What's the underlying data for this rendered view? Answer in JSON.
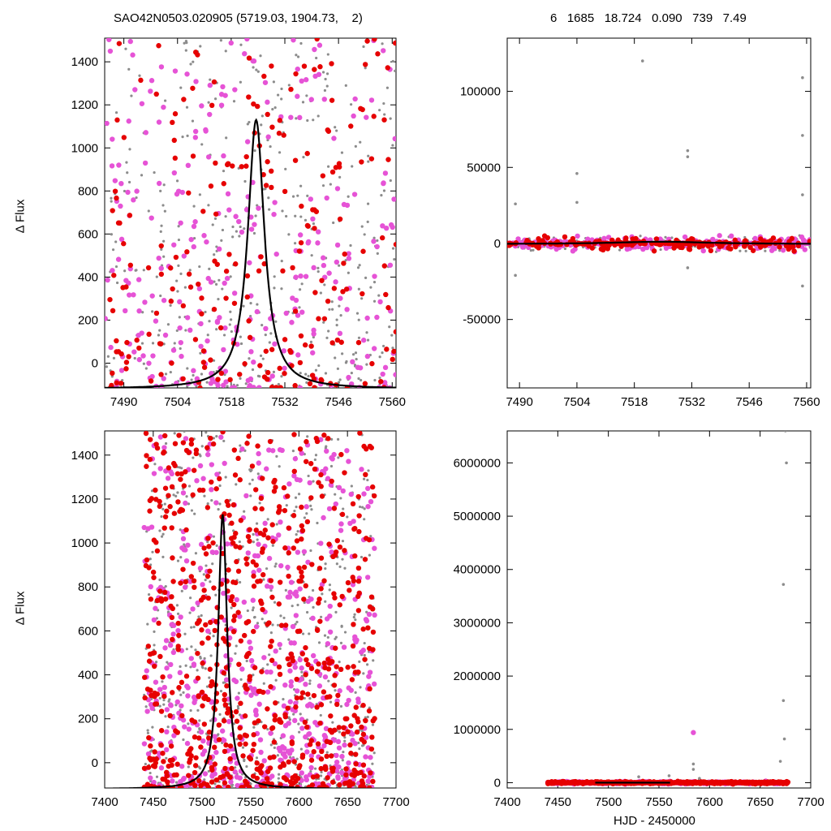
{
  "header": {
    "left": "SAO42N0503.020905 (5719.03, 1904.73,    2)",
    "right": "6   1685   18.724   0.090   739   7.49"
  },
  "labels": {
    "ylabel": "Δ Flux",
    "xlabel": "HJD - 2450000"
  },
  "colors": {
    "gray": "#8c8c8c",
    "magenta": "#e653d6",
    "red": "#e60000",
    "model": "#000000"
  },
  "chart_data": [
    {
      "id": "top-left",
      "type": "scatter",
      "xlim": [
        7485,
        7561
      ],
      "ylim": [
        -115,
        1510
      ],
      "xticks": [
        7490,
        7504,
        7518,
        7532,
        7546,
        7560
      ],
      "yticks": [
        0,
        200,
        400,
        600,
        800,
        1000,
        1200,
        1400
      ],
      "ylabel": "Δ Flux",
      "xlabel": "",
      "model": {
        "shape": "lorentzian",
        "peak_x": 7524.5,
        "peak_y": 1130,
        "width": 2.6,
        "baseline": -120
      },
      "seed": 11,
      "counts": [
        420,
        300,
        230
      ],
      "x_range": [
        7485,
        7561
      ],
      "y_range": [
        -115,
        1510
      ]
    },
    {
      "id": "top-right",
      "type": "scatter",
      "xlim": [
        7487,
        7561
      ],
      "ylim": [
        -95000,
        135000
      ],
      "xticks": [
        7490,
        7504,
        7518,
        7532,
        7546,
        7560
      ],
      "yticks": [
        -50000,
        0,
        50000,
        100000
      ],
      "ylabel": "",
      "xlabel": "",
      "model": {
        "shape": "gentle-arc",
        "peak_x": 7524.5,
        "peak_y": 1130,
        "baseline": -400
      },
      "seed": 23,
      "counts": [
        420,
        300,
        230
      ],
      "x_range": [
        7487,
        7561
      ],
      "y_range": [
        -6000,
        6000
      ],
      "outliers": [
        {
          "x": 7520,
          "y": 120000
        },
        {
          "x": 7559,
          "y": 109000
        },
        {
          "x": 7559,
          "y": 71000
        },
        {
          "x": 7531,
          "y": 61000
        },
        {
          "x": 7531,
          "y": 57000
        },
        {
          "x": 7504,
          "y": 46000
        },
        {
          "x": 7559,
          "y": 32000
        },
        {
          "x": 7489,
          "y": 26000
        },
        {
          "x": 7504,
          "y": 27000
        },
        {
          "x": 7489,
          "y": -21000
        },
        {
          "x": 7559,
          "y": -28000
        },
        {
          "x": 7531,
          "y": -16000
        }
      ]
    },
    {
      "id": "bottom-left",
      "type": "scatter",
      "xlim": [
        7400,
        7700
      ],
      "ylim": [
        -115,
        1510
      ],
      "xticks": [
        7400,
        7450,
        7500,
        7550,
        7600,
        7650,
        7700
      ],
      "yticks": [
        0,
        200,
        400,
        600,
        800,
        1000,
        1200,
        1400
      ],
      "ylabel": "Δ Flux",
      "xlabel": "HJD - 2450000",
      "model": {
        "shape": "lorentzian",
        "peak_x": 7521.5,
        "peak_y": 1130,
        "width": 5.5,
        "baseline": -120
      },
      "seed": 37,
      "counts": [
        650,
        600,
        700
      ],
      "x_range": [
        7440,
        7678
      ],
      "y_range": [
        -115,
        1510
      ]
    },
    {
      "id": "bottom-right",
      "type": "scatter",
      "xlim": [
        7400,
        7700
      ],
      "ylim": [
        -100000,
        6600000
      ],
      "xticks": [
        7400,
        7450,
        7500,
        7550,
        7600,
        7650,
        7700
      ],
      "yticks": [
        0,
        1000000,
        2000000,
        3000000,
        4000000,
        5000000,
        6000000
      ],
      "ylabel": "",
      "xlabel": "HJD - 2450000",
      "model": {
        "shape": "flat-segment",
        "x_start": 7487,
        "x_end": 7561,
        "y": 0
      },
      "seed": 53,
      "counts": [
        650,
        600,
        700
      ],
      "x_range": [
        7440,
        7678
      ],
      "y_range": [
        -30000,
        30000
      ],
      "outliers": [
        {
          "x": 7675,
          "y": 6600000
        },
        {
          "x": 7676,
          "y": 6000000
        },
        {
          "x": 7673,
          "y": 3720000
        },
        {
          "x": 7673,
          "y": 1540000
        },
        {
          "x": 7674,
          "y": 820000
        },
        {
          "x": 7670,
          "y": 400000
        },
        {
          "x": 7584,
          "y": 940000,
          "color": "magenta"
        },
        {
          "x": 7584,
          "y": 350000
        },
        {
          "x": 7584,
          "y": 250000
        },
        {
          "x": 7560,
          "y": 130000
        },
        {
          "x": 7530,
          "y": 110000
        },
        {
          "x": 7590,
          "y": 80000
        }
      ]
    }
  ]
}
